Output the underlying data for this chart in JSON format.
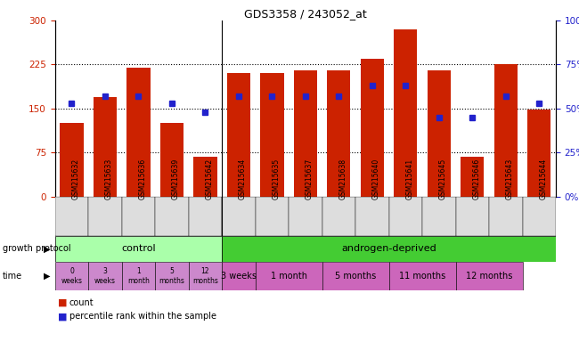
{
  "title": "GDS3358 / 243052_at",
  "samples": [
    "GSM215632",
    "GSM215633",
    "GSM215636",
    "GSM215639",
    "GSM215642",
    "GSM215634",
    "GSM215635",
    "GSM215637",
    "GSM215638",
    "GSM215640",
    "GSM215641",
    "GSM215645",
    "GSM215646",
    "GSM215643",
    "GSM215644"
  ],
  "counts": [
    125,
    170,
    220,
    125,
    68,
    210,
    210,
    215,
    215,
    235,
    285,
    215,
    68,
    225,
    148
  ],
  "percentiles": [
    53,
    57,
    57,
    53,
    48,
    57,
    57,
    57,
    57,
    63,
    63,
    45,
    45,
    57,
    53
  ],
  "ylim_left": [
    0,
    300
  ],
  "ylim_right": [
    0,
    100
  ],
  "yticks_left": [
    0,
    75,
    150,
    225,
    300
  ],
  "yticks_right": [
    0,
    25,
    50,
    75,
    100
  ],
  "bar_color": "#cc2200",
  "dot_color": "#2222cc",
  "bg_color": "#ffffff",
  "axis_color_left": "#cc2200",
  "axis_color_right": "#2222cc",
  "control_bg": "#aaffaa",
  "androgen_bg": "#44cc33",
  "time_ctrl_bg": "#cc88cc",
  "time_and_bg": "#cc66bb",
  "xticklabel_bg": "#dddddd",
  "control_label": "control",
  "androgen_label": "androgen-deprived",
  "growth_protocol_label": "growth protocol",
  "time_label": "time",
  "control_samples_count": 5,
  "control_times": [
    "0\nweeks",
    "3\nweeks",
    "1\nmonth",
    "5\nmonths",
    "12\nmonths"
  ],
  "androgen_times": [
    "3 weeks",
    "1 month",
    "5 months",
    "11 months",
    "12 months"
  ],
  "androgen_groups": [
    1,
    2,
    2,
    2,
    2
  ],
  "legend_count_label": "count",
  "legend_percentile_label": "percentile rank within the sample"
}
